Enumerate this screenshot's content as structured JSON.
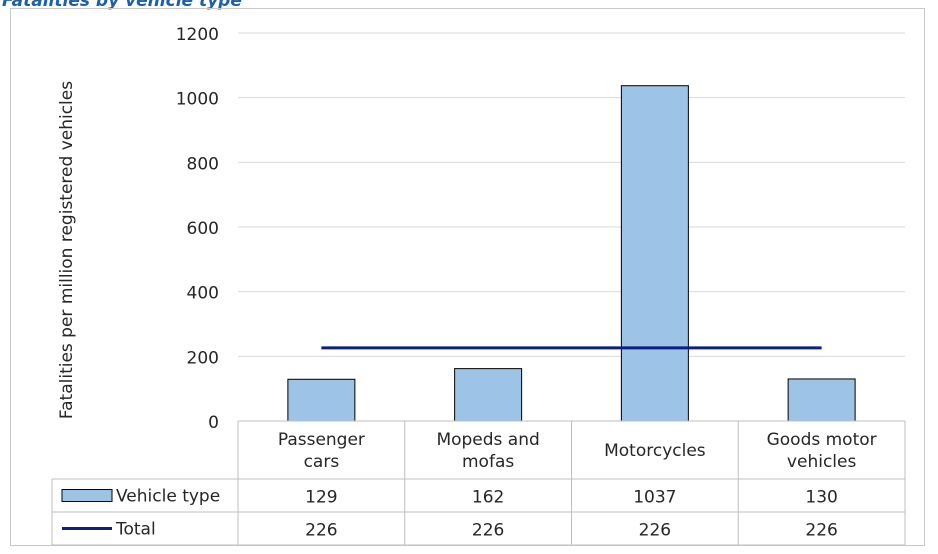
{
  "caption": "Fatalities by vehicle type",
  "chart_data": {
    "type": "bar",
    "title": "",
    "xlabel": "",
    "ylabel": "Fatalities per million registered vehicles",
    "ylim": [
      0,
      1200
    ],
    "yticks": [
      0,
      200,
      400,
      600,
      800,
      1000,
      1200
    ],
    "grid": true,
    "categories": [
      [
        "Passenger",
        "cars"
      ],
      [
        "Mopeds and",
        "mofas"
      ],
      [
        "Motorcycles"
      ],
      [
        "Goods motor",
        "vehicles"
      ]
    ],
    "series": [
      {
        "name": "Vehicle type",
        "type": "bar",
        "values": [
          129,
          162,
          1037,
          130
        ],
        "color": "#9dc3e6",
        "edge": "#000000"
      },
      {
        "name": "Total",
        "type": "line",
        "values": [
          226,
          226,
          226,
          226
        ],
        "color": "#0d1f80"
      }
    ],
    "legend": "data-table"
  }
}
